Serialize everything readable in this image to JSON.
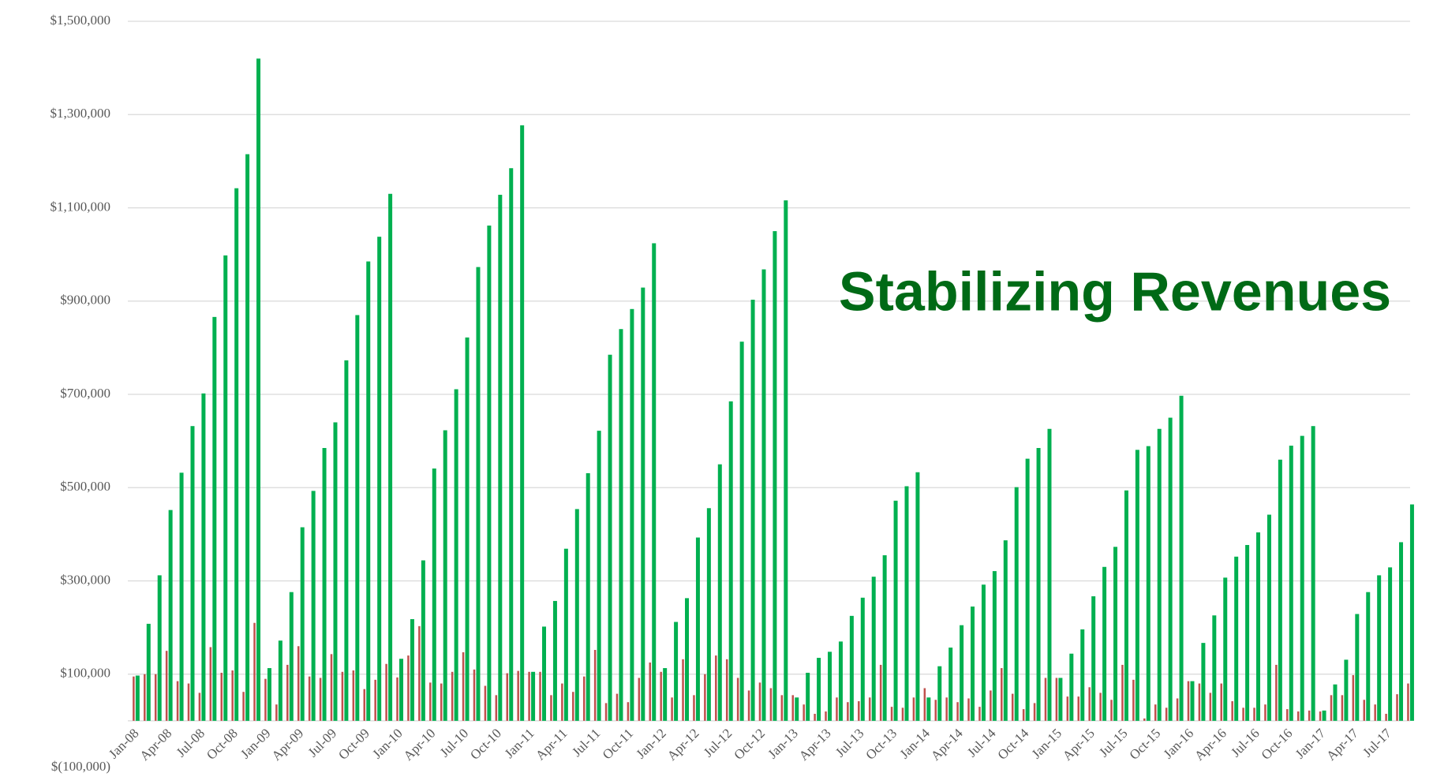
{
  "chart_data": {
    "type": "bar",
    "title": "Stabilizing Revenues",
    "categories": [
      "Jan-08",
      null,
      null,
      "Apr-08",
      null,
      null,
      "Jul-08",
      null,
      null,
      "Oct-08",
      null,
      null,
      "Jan-09",
      null,
      null,
      "Apr-09",
      null,
      null,
      "Jul-09",
      null,
      null,
      "Oct-09",
      null,
      null,
      "Jan-10",
      null,
      null,
      "Apr-10",
      null,
      null,
      "Jul-10",
      null,
      null,
      "Oct-10",
      null,
      null,
      "Jan-11",
      null,
      null,
      "Apr-11",
      null,
      null,
      "Jul-11",
      null,
      null,
      "Oct-11",
      null,
      null,
      "Jan-12",
      null,
      null,
      "Apr-12",
      null,
      null,
      "Jul-12",
      null,
      null,
      "Oct-12",
      null,
      null,
      "Jan-13",
      null,
      null,
      "Apr-13",
      null,
      null,
      "Jul-13",
      null,
      null,
      "Oct-13",
      null,
      null,
      "Jan-14",
      null,
      null,
      "Apr-14",
      null,
      null,
      "Jul-14",
      null,
      null,
      "Oct-14",
      null,
      null,
      "Jan-15",
      null,
      null,
      "Apr-15",
      null,
      null,
      "Jul-15",
      null,
      null,
      "Oct-15",
      null,
      null,
      "Jan-16",
      null,
      null,
      "Apr-16",
      null,
      null,
      "Jul-16",
      null,
      null,
      "Oct-16",
      null,
      null,
      "Jan-17",
      null,
      null,
      "Apr-17",
      null,
      null,
      "Jul-17",
      null,
      null
    ],
    "series": [
      {
        "color": "#c0504d",
        "values": [
          95000,
          100000,
          100000,
          150000,
          85000,
          80000,
          60000,
          158000,
          103000,
          108000,
          62000,
          210000,
          90000,
          35000,
          120000,
          160000,
          95000,
          92000,
          143000,
          105000,
          108000,
          68000,
          88000,
          122000,
          93000,
          140000,
          203000,
          82000,
          80000,
          105000,
          147000,
          110000,
          75000,
          55000,
          102000,
          107000,
          105000,
          105000,
          55000,
          80000,
          62000,
          95000,
          152000,
          38000,
          58000,
          40000,
          92000,
          125000,
          105000,
          50000,
          132000,
          55000,
          100000,
          140000,
          132000,
          92000,
          65000,
          82000,
          70000,
          55000,
          55000,
          35000,
          15000,
          20000,
          50000,
          40000,
          42000,
          50000,
          120000,
          30000,
          28000,
          50000,
          70000,
          45000,
          50000,
          40000,
          48000,
          30000,
          65000,
          113000,
          58000,
          25000,
          38000,
          92000,
          92000,
          52000,
          52000,
          72000,
          60000,
          45000,
          120000,
          88000,
          5000,
          35000,
          28000,
          48000,
          85000,
          80000,
          60000,
          80000,
          42000,
          28000,
          28000,
          35000,
          120000,
          25000,
          20000,
          22000,
          20000,
          55000,
          55000,
          98000,
          45000,
          35000,
          15000,
          57000,
          80000
        ]
      },
      {
        "color": "#00b050",
        "values": [
          97000,
          208000,
          312000,
          452000,
          532000,
          632000,
          702000,
          866000,
          998000,
          1142000,
          1215000,
          1420000,
          113000,
          172000,
          276000,
          415000,
          493000,
          585000,
          640000,
          773000,
          870000,
          985000,
          1038000,
          1130000,
          133000,
          218000,
          344000,
          541000,
          623000,
          711000,
          822000,
          973000,
          1062000,
          1128000,
          1185000,
          1277000,
          105000,
          202000,
          257000,
          369000,
          454000,
          531000,
          622000,
          785000,
          840000,
          883000,
          929000,
          1024000,
          113000,
          212000,
          263000,
          393000,
          456000,
          550000,
          685000,
          813000,
          903000,
          968000,
          1050000,
          1116000,
          50000,
          103000,
          135000,
          148000,
          170000,
          225000,
          264000,
          309000,
          355000,
          472000,
          503000,
          533000,
          50000,
          117000,
          157000,
          205000,
          245000,
          292000,
          321000,
          387000,
          501000,
          562000,
          585000,
          626000,
          92000,
          144000,
          196000,
          267000,
          330000,
          373000,
          494000,
          581000,
          589000,
          626000,
          650000,
          697000,
          85000,
          167000,
          226000,
          307000,
          352000,
          377000,
          404000,
          442000,
          560000,
          590000,
          611000,
          632000,
          22000,
          78000,
          131000,
          229000,
          276000,
          312000,
          329000,
          383000,
          464000
        ]
      }
    ],
    "ylim": [
      -100000,
      1500000
    ],
    "yticks": [
      {
        "value": -100000,
        "label": "$(100,000)"
      },
      {
        "value": 100000,
        "label": "$100,000"
      },
      {
        "value": 300000,
        "label": "$300,000"
      },
      {
        "value": 500000,
        "label": "$500,000"
      },
      {
        "value": 700000,
        "label": "$700,000"
      },
      {
        "value": 900000,
        "label": "$900,000"
      },
      {
        "value": 1100000,
        "label": "$1,100,000"
      },
      {
        "value": 1300000,
        "label": "$1,300,000"
      },
      {
        "value": 1500000,
        "label": "$1,500,000"
      }
    ],
    "grid": true
  }
}
